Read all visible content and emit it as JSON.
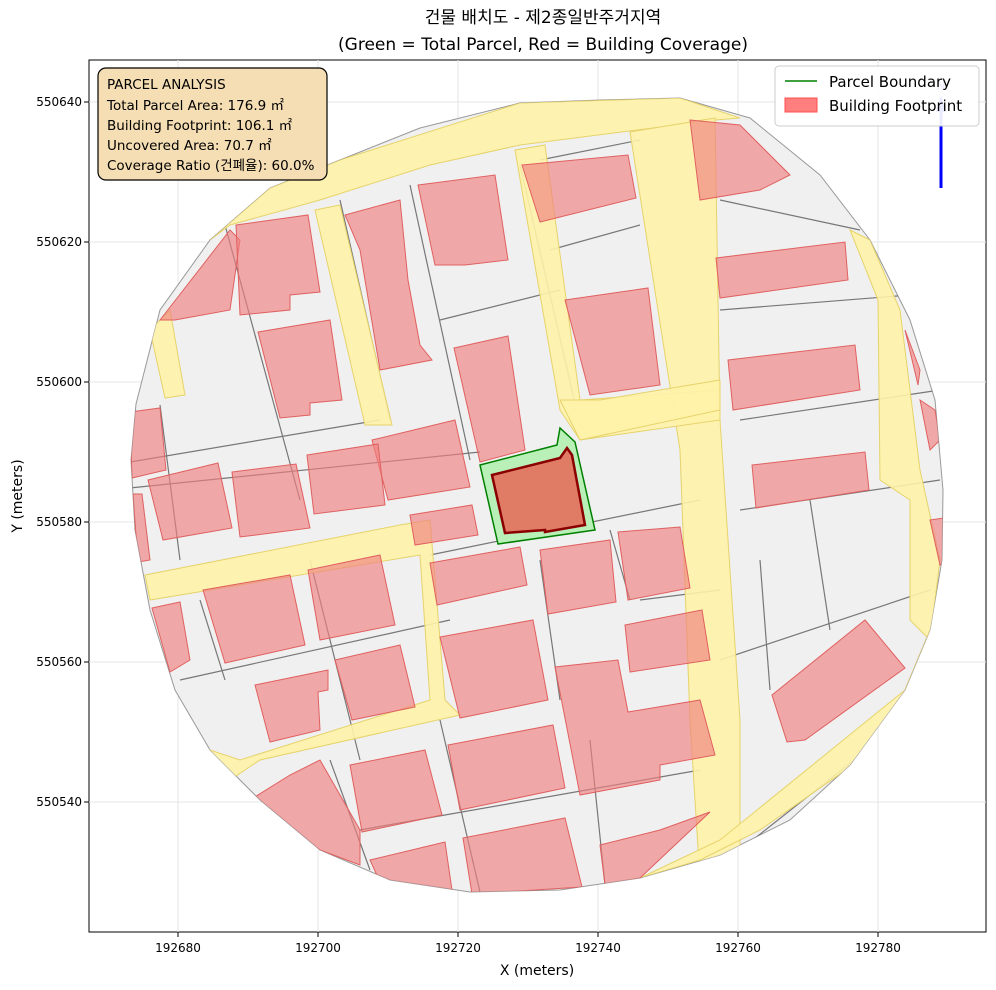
{
  "title": {
    "line1": "건물 배치도 - 제2종일반주거지역",
    "line2": "(Green = Total Parcel, Red = Building Coverage)"
  },
  "axes": {
    "xlabel": "X (meters)",
    "ylabel": "Y (meters)",
    "xticks": [
      "192680",
      "192700",
      "192720",
      "192740",
      "192760",
      "192780"
    ],
    "yticks": [
      "550640",
      "550620",
      "550600",
      "550580",
      "550560",
      "550540"
    ],
    "grid": true
  },
  "info_box": {
    "header": "PARCEL ANALYSIS",
    "total_area": "Total Parcel Area: 176.9 ㎡",
    "footprint": "Building Footprint: 106.1 ㎡",
    "uncovered": "Uncovered Area: 70.7 ㎡",
    "coverage": "Coverage Ratio (건폐율): 60.0%"
  },
  "legend": {
    "placement": "top-right",
    "items": [
      {
        "label": "Parcel Boundary",
        "color": "#008000"
      },
      {
        "label": "Building Footprint",
        "color": "#ff7f7f"
      }
    ]
  },
  "colors": {
    "road": "#fff2a8",
    "parcel_bg": "#f0f0f0",
    "building": "#f4a6a6",
    "target_parcel": "#b8f0b8",
    "target_building": "#e07b65",
    "north_arrow": "#0000ff"
  },
  "icons": {
    "north_arrow": "north-arrow-icon"
  }
}
